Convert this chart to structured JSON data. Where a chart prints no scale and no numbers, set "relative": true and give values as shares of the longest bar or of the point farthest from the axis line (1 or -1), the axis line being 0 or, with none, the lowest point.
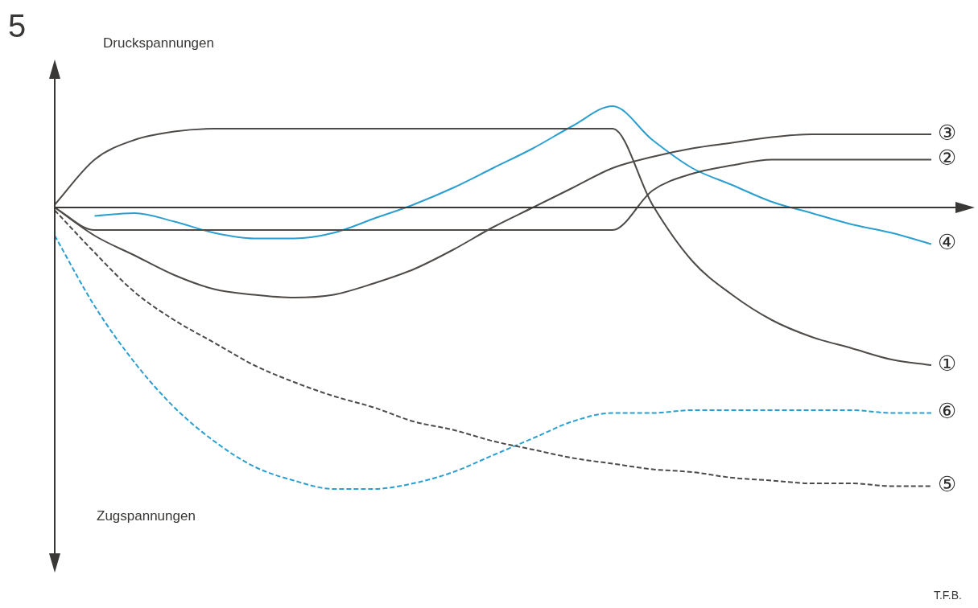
{
  "chart_data": {
    "type": "line",
    "title": "5",
    "relative": true,
    "annotations": [
      "Druckspannungen",
      "Zugspannungen",
      "T.F.B."
    ],
    "marker": "none",
    "grid": false,
    "legend": false,
    "categories": [
      null,
      null,
      null,
      null,
      null,
      null,
      null,
      null,
      null,
      null,
      null,
      null,
      null,
      null,
      null,
      null,
      null,
      null,
      null,
      null,
      null,
      null,
      null
    ],
    "series": [
      {
        "name": "①",
        "color": "#4d4a48",
        "line_style": "solid",
        "values": [
          0.01,
          0.17,
          0.24,
          0.27,
          0.28,
          0.28,
          0.28,
          0.28,
          0.28,
          0.28,
          0.28,
          0.28,
          0.28,
          0.28,
          0.28,
          0.01,
          -0.19,
          -0.31,
          -0.4,
          -0.46,
          -0.5,
          -0.54,
          -0.56
        ]
      },
      {
        "name": "②",
        "color": "#4d4a48",
        "line_style": "solid",
        "values": [
          0,
          -0.08,
          -0.08,
          -0.08,
          -0.08,
          -0.08,
          -0.08,
          -0.08,
          -0.08,
          -0.08,
          -0.08,
          -0.08,
          -0.08,
          -0.08,
          -0.08,
          0.06,
          0.12,
          0.15,
          0.17,
          0.17,
          0.17,
          0.17,
          0.17
        ]
      },
      {
        "name": "③",
        "color": "#4d4a48",
        "line_style": "solid",
        "values": [
          0,
          -0.1,
          -0.17,
          -0.24,
          -0.29,
          -0.31,
          -0.32,
          -0.31,
          -0.27,
          -0.22,
          -0.15,
          -0.07,
          0.0,
          0.07,
          0.14,
          0.18,
          0.21,
          0.23,
          0.25,
          0.26,
          0.26,
          0.26,
          0.26
        ]
      },
      {
        "name": "④",
        "color": "#2a9fd0",
        "line_style": "solid",
        "values": [
          null,
          -0.03,
          -0.02,
          -0.05,
          -0.09,
          -0.11,
          -0.11,
          -0.09,
          -0.04,
          0.01,
          0.07,
          0.14,
          0.21,
          0.29,
          0.36,
          0.24,
          0.14,
          0.08,
          0.02,
          -0.02,
          -0.06,
          -0.09,
          -0.13
        ]
      },
      {
        "name": "⑤",
        "color": "#4d4a48",
        "line_style": "dashed",
        "values": [
          -0.01,
          -0.16,
          -0.3,
          -0.4,
          -0.48,
          -0.56,
          -0.62,
          -0.67,
          -0.71,
          -0.76,
          -0.79,
          -0.83,
          -0.86,
          -0.89,
          -0.91,
          -0.93,
          -0.94,
          -0.96,
          -0.97,
          -0.98,
          -0.98,
          -0.99,
          -0.99
        ]
      },
      {
        "name": "⑥",
        "color": "#2a9fd0",
        "line_style": "dashed",
        "values": [
          -0.1,
          -0.35,
          -0.55,
          -0.71,
          -0.83,
          -0.92,
          -0.97,
          -1.0,
          -1.0,
          -0.98,
          -0.94,
          -0.88,
          -0.82,
          -0.76,
          -0.73,
          -0.73,
          -0.72,
          -0.72,
          -0.72,
          -0.72,
          -0.72,
          -0.73,
          -0.73
        ]
      }
    ]
  }
}
